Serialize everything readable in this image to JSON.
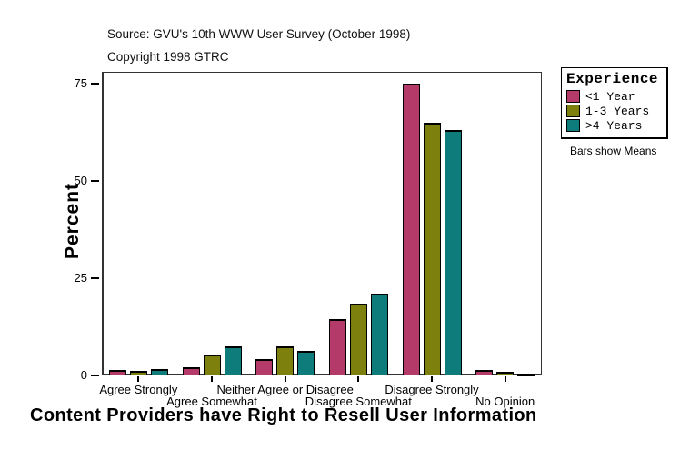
{
  "header": {
    "source": "Source: GVU's 10th WWW User Survey (October 1998)",
    "copyright": "Copyright 1998 GTRC"
  },
  "legend": {
    "title": "Experience",
    "note": "Bars show Means",
    "items": [
      {
        "label": "<1 Year",
        "color": "#b43a6a"
      },
      {
        "label": "1-3 Years",
        "color": "#7e800e"
      },
      {
        "label": ">4 Years",
        "color": "#0e7c7b"
      }
    ]
  },
  "chart_data": {
    "type": "bar",
    "title": "Content Providers have Right to Resell User Information",
    "xlabel": "",
    "ylabel": "Percent",
    "categories": [
      "Agree Strongly",
      "Agree Somewhat",
      "Neither Agree or Disagree",
      "Disagree Somewhat",
      "Disagree Strongly",
      "No Opinion"
    ],
    "series": [
      {
        "name": "<1 Year",
        "color": "#b43a6a",
        "values": [
          1.3,
          2.2,
          4.3,
          14.5,
          75,
          1.5
        ]
      },
      {
        "name": "1-3 Years",
        "color": "#7e800e",
        "values": [
          1.2,
          5.3,
          7.4,
          18.5,
          65,
          1.0
        ]
      },
      {
        "name": ">4 Years",
        "color": "#0e7c7b",
        "values": [
          1.6,
          7.5,
          6.2,
          21,
          63,
          0.4
        ]
      }
    ],
    "yticks": [
      0,
      25,
      50,
      75
    ],
    "ylim": [
      0,
      78
    ],
    "grid": false,
    "legend_position": "right",
    "legend_title": "Experience",
    "annotation": "Bars show Means"
  }
}
